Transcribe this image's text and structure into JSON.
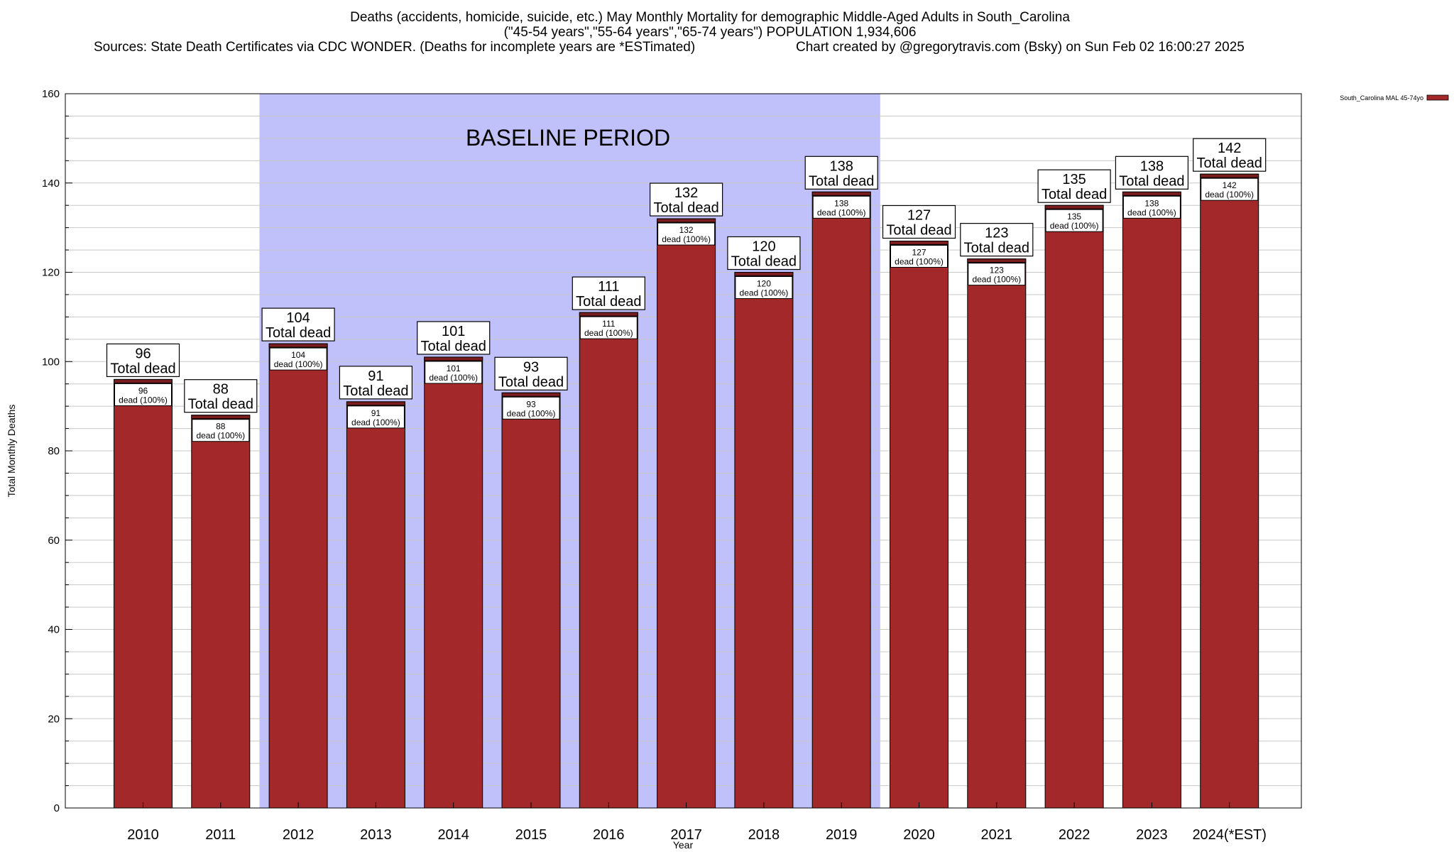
{
  "chart_data": {
    "type": "bar",
    "title_lines": [
      "Deaths (accidents, homicide, suicide, etc.) May Monthly Mortality for demographic Middle-Aged Adults in South_Carolina",
      "(\"45-54 years\",\"55-64 years\",\"65-74 years\") POPULATION 1,934,606",
      "Sources: State Death Certificates via CDC WONDER. (Deaths for incomplete years are *ESTimated)",
      "Chart created by @gregorytravis.com (Bsky) on Sun Feb 02 16:00:27 2025"
    ],
    "xlabel": "Year",
    "ylabel": "Total Monthly Deaths",
    "ylim": [
      0,
      160
    ],
    "yticks": [
      0,
      20,
      40,
      60,
      80,
      100,
      120,
      140,
      160
    ],
    "categories": [
      "2010",
      "2011",
      "2012",
      "2013",
      "2014",
      "2015",
      "2016",
      "2017",
      "2018",
      "2019",
      "2020",
      "2021",
      "2022",
      "2023",
      "2024(*EST)"
    ],
    "series": [
      {
        "name": "South_Carolina MAL 45-74yo",
        "values": [
          96,
          88,
          104,
          91,
          101,
          93,
          111,
          132,
          120,
          138,
          127,
          123,
          135,
          138,
          142
        ]
      }
    ],
    "bar_label_top_suffix": "Total dead",
    "bar_label_inner_suffix": "dead (100%)",
    "baseline_period": {
      "label": "BASELINE PERIOD",
      "start": "2012",
      "end": "2019"
    },
    "legend_position": "top-right",
    "grid": true,
    "colors": {
      "bar": "#a3282a",
      "bar_cap": "#7a1d1f",
      "baseline": "#c0c0fb",
      "grid": "#c8c8c8"
    }
  }
}
